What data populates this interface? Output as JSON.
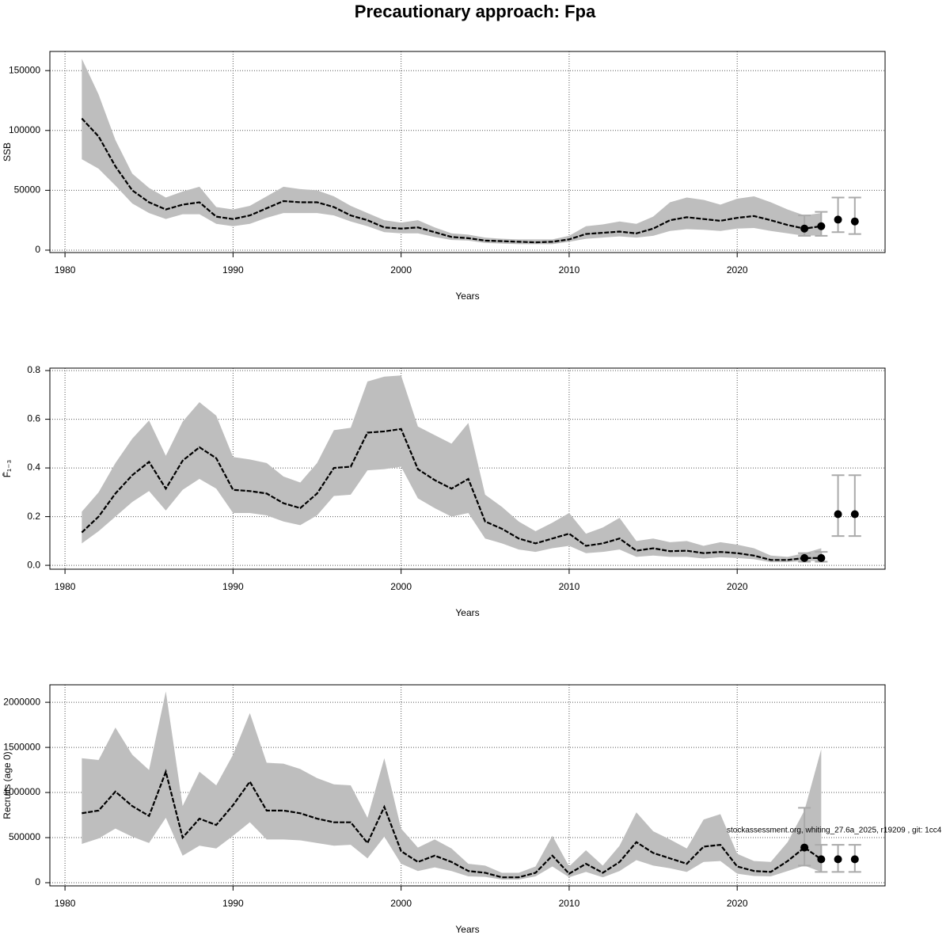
{
  "title": "Precautionary approach: Fpa",
  "chart_data": [
    {
      "type": "line",
      "xlabel": "Years",
      "ylabel": "SSB",
      "x": [
        1981,
        1982,
        1983,
        1984,
        1985,
        1986,
        1987,
        1988,
        1989,
        1990,
        1991,
        1992,
        1993,
        1994,
        1995,
        1996,
        1997,
        1998,
        1999,
        2000,
        2001,
        2002,
        2003,
        2004,
        2005,
        2006,
        2007,
        2008,
        2009,
        2010,
        2011,
        2012,
        2013,
        2014,
        2015,
        2016,
        2017,
        2018,
        2019,
        2020,
        2021,
        2022,
        2023,
        2024,
        2025
      ],
      "values": [
        110000,
        95000,
        70000,
        50000,
        40000,
        34000,
        38000,
        40000,
        28000,
        26000,
        29000,
        35000,
        41000,
        40000,
        40000,
        36000,
        29000,
        25000,
        19000,
        18000,
        19000,
        15000,
        11000,
        10000,
        8000,
        7500,
        7000,
        6500,
        7000,
        9000,
        13500,
        14500,
        15500,
        14000,
        18000,
        25000,
        27500,
        26000,
        24500,
        27000,
        28500,
        25000,
        21000,
        18000,
        20000
      ],
      "upper": [
        160000,
        130000,
        92000,
        64000,
        52000,
        44000,
        49000,
        53000,
        36000,
        34000,
        37000,
        45000,
        53000,
        51000,
        50000,
        45000,
        37000,
        31000,
        25000,
        23000,
        25000,
        19000,
        14000,
        13000,
        10500,
        9500,
        9000,
        9000,
        9000,
        12000,
        20000,
        21500,
        24000,
        22000,
        28000,
        40000,
        44000,
        42000,
        38000,
        43000,
        45000,
        40000,
        34000,
        29000,
        31000
      ],
      "lower": [
        76000,
        68000,
        54000,
        39000,
        31000,
        26000,
        30000,
        30000,
        22000,
        20000,
        22000,
        27000,
        31000,
        31000,
        31000,
        29000,
        24000,
        20000,
        15000,
        14000,
        14000,
        11000,
        8500,
        8000,
        6000,
        5500,
        5000,
        5000,
        5000,
        7000,
        9500,
        10500,
        11500,
        10500,
        12000,
        16000,
        17500,
        17000,
        16000,
        18000,
        18500,
        16000,
        14000,
        12000,
        12500
      ],
      "forecast": {
        "x": [
          2024,
          2025,
          2026,
          2027
        ],
        "values": [
          18000,
          20000,
          25500,
          24000
        ],
        "lower": [
          12000,
          12000,
          15000,
          13500
        ],
        "upper": [
          29000,
          32000,
          44000,
          44000
        ]
      },
      "xlim": [
        1979.1,
        2028.8
      ],
      "ylim": [
        -2000,
        166000
      ],
      "xticks": [
        1980,
        1990,
        2000,
        2010,
        2020
      ],
      "yticks": [
        0,
        50000,
        100000,
        150000
      ],
      "grid": true,
      "color": "#000000",
      "band_color": "#bebebe",
      "errorbar_color": "#aaaaaa"
    },
    {
      "type": "line",
      "xlabel": "Years",
      "ylabel": "F̄₁₋₃",
      "x": [
        1981,
        1982,
        1983,
        1984,
        1985,
        1986,
        1987,
        1988,
        1989,
        1990,
        1991,
        1992,
        1993,
        1994,
        1995,
        1996,
        1997,
        1998,
        1999,
        2000,
        2001,
        2002,
        2003,
        2004,
        2005,
        2006,
        2007,
        2008,
        2009,
        2010,
        2011,
        2012,
        2013,
        2014,
        2015,
        2016,
        2017,
        2018,
        2019,
        2020,
        2021,
        2022,
        2023,
        2024,
        2025
      ],
      "values": [
        0.135,
        0.2,
        0.295,
        0.37,
        0.425,
        0.315,
        0.43,
        0.485,
        0.44,
        0.31,
        0.305,
        0.295,
        0.255,
        0.235,
        0.295,
        0.4,
        0.405,
        0.545,
        0.55,
        0.56,
        0.395,
        0.35,
        0.315,
        0.355,
        0.18,
        0.15,
        0.11,
        0.09,
        0.11,
        0.13,
        0.08,
        0.09,
        0.11,
        0.06,
        0.07,
        0.058,
        0.06,
        0.05,
        0.055,
        0.05,
        0.04,
        0.022,
        0.022,
        0.03,
        0.03
      ],
      "upper": [
        0.22,
        0.3,
        0.42,
        0.52,
        0.595,
        0.45,
        0.59,
        0.67,
        0.615,
        0.445,
        0.435,
        0.42,
        0.365,
        0.34,
        0.42,
        0.555,
        0.565,
        0.755,
        0.775,
        0.78,
        0.57,
        0.535,
        0.5,
        0.585,
        0.29,
        0.24,
        0.18,
        0.14,
        0.175,
        0.215,
        0.13,
        0.155,
        0.195,
        0.1,
        0.11,
        0.095,
        0.1,
        0.08,
        0.095,
        0.085,
        0.07,
        0.04,
        0.035,
        0.05,
        0.07
      ],
      "lower": [
        0.09,
        0.14,
        0.2,
        0.26,
        0.305,
        0.225,
        0.31,
        0.355,
        0.315,
        0.215,
        0.215,
        0.205,
        0.18,
        0.165,
        0.205,
        0.285,
        0.29,
        0.39,
        0.395,
        0.405,
        0.275,
        0.235,
        0.2,
        0.215,
        0.11,
        0.09,
        0.065,
        0.055,
        0.07,
        0.08,
        0.05,
        0.055,
        0.065,
        0.035,
        0.04,
        0.035,
        0.035,
        0.028,
        0.033,
        0.03,
        0.025,
        0.013,
        0.013,
        0.018,
        0.018
      ],
      "forecast": {
        "x": [
          2024,
          2025,
          2026,
          2027
        ],
        "values": [
          0.03,
          0.03,
          0.21,
          0.21
        ],
        "lower": [
          0.015,
          0.015,
          0.12,
          0.12
        ],
        "upper": [
          0.05,
          0.055,
          0.37,
          0.37
        ]
      },
      "xlim": [
        1979.1,
        2028.8
      ],
      "ylim": [
        -0.016,
        0.81
      ],
      "xticks": [
        1980,
        1990,
        2000,
        2010,
        2020
      ],
      "yticks": [
        {
          "value": 0,
          "label": "0.0"
        },
        0.2,
        0.4,
        0.6,
        0.8
      ],
      "grid": true,
      "color": "#000000",
      "band_color": "#bebebe",
      "errorbar_color": "#aaaaaa"
    },
    {
      "type": "line",
      "xlabel": "Years",
      "ylabel": "Recruits (age 0)",
      "annotation": "stockassessment.org, whiting_27.6a_2025, r19209 , git: 1cc4",
      "x": [
        1981,
        1982,
        1983,
        1984,
        1985,
        1986,
        1987,
        1988,
        1989,
        1990,
        1991,
        1992,
        1993,
        1994,
        1995,
        1996,
        1997,
        1998,
        1999,
        2000,
        2001,
        2002,
        2003,
        2004,
        2005,
        2006,
        2007,
        2008,
        2009,
        2010,
        2011,
        2012,
        2013,
        2014,
        2015,
        2016,
        2017,
        2018,
        2019,
        2020,
        2021,
        2022,
        2023,
        2024,
        2025
      ],
      "values": [
        770000,
        800000,
        1010000,
        850000,
        740000,
        1230000,
        500000,
        710000,
        640000,
        860000,
        1120000,
        800000,
        800000,
        770000,
        710000,
        670000,
        670000,
        440000,
        840000,
        350000,
        230000,
        300000,
        230000,
        130000,
        110000,
        60000,
        60000,
        110000,
        300000,
        100000,
        210000,
        110000,
        230000,
        450000,
        330000,
        270000,
        210000,
        400000,
        420000,
        180000,
        130000,
        120000,
        240000,
        390000,
        260000
      ],
      "upper": [
        1380000,
        1360000,
        1720000,
        1420000,
        1250000,
        2120000,
        850000,
        1230000,
        1080000,
        1420000,
        1880000,
        1330000,
        1320000,
        1260000,
        1160000,
        1090000,
        1080000,
        720000,
        1380000,
        600000,
        390000,
        480000,
        380000,
        210000,
        190000,
        110000,
        110000,
        180000,
        520000,
        180000,
        360000,
        190000,
        410000,
        780000,
        570000,
        480000,
        380000,
        700000,
        760000,
        320000,
        240000,
        230000,
        450000,
        800000,
        1480000
      ],
      "lower": [
        430000,
        490000,
        600000,
        510000,
        440000,
        720000,
        300000,
        410000,
        380000,
        520000,
        670000,
        480000,
        480000,
        470000,
        440000,
        410000,
        420000,
        270000,
        510000,
        210000,
        130000,
        170000,
        130000,
        70000,
        65000,
        35000,
        35000,
        70000,
        180000,
        60000,
        120000,
        60000,
        130000,
        250000,
        190000,
        160000,
        120000,
        230000,
        240000,
        100000,
        75000,
        70000,
        130000,
        190000,
        120000
      ],
      "forecast": {
        "x": [
          2024,
          2025,
          2026,
          2027
        ],
        "values": [
          390000,
          260000,
          260000,
          260000
        ],
        "lower": [
          190000,
          120000,
          120000,
          120000
        ],
        "upper": [
          830000,
          420000,
          420000,
          420000
        ]
      },
      "xlim": [
        1979.1,
        2028.8
      ],
      "ylim": [
        -35000,
        2194000
      ],
      "xticks": [
        1980,
        1990,
        2000,
        2010,
        2020
      ],
      "yticks": [
        0,
        500000,
        1000000,
        1500000,
        2000000
      ],
      "grid": true,
      "color": "#000000",
      "band_color": "#bebebe",
      "errorbar_color": "#aaaaaa"
    }
  ]
}
